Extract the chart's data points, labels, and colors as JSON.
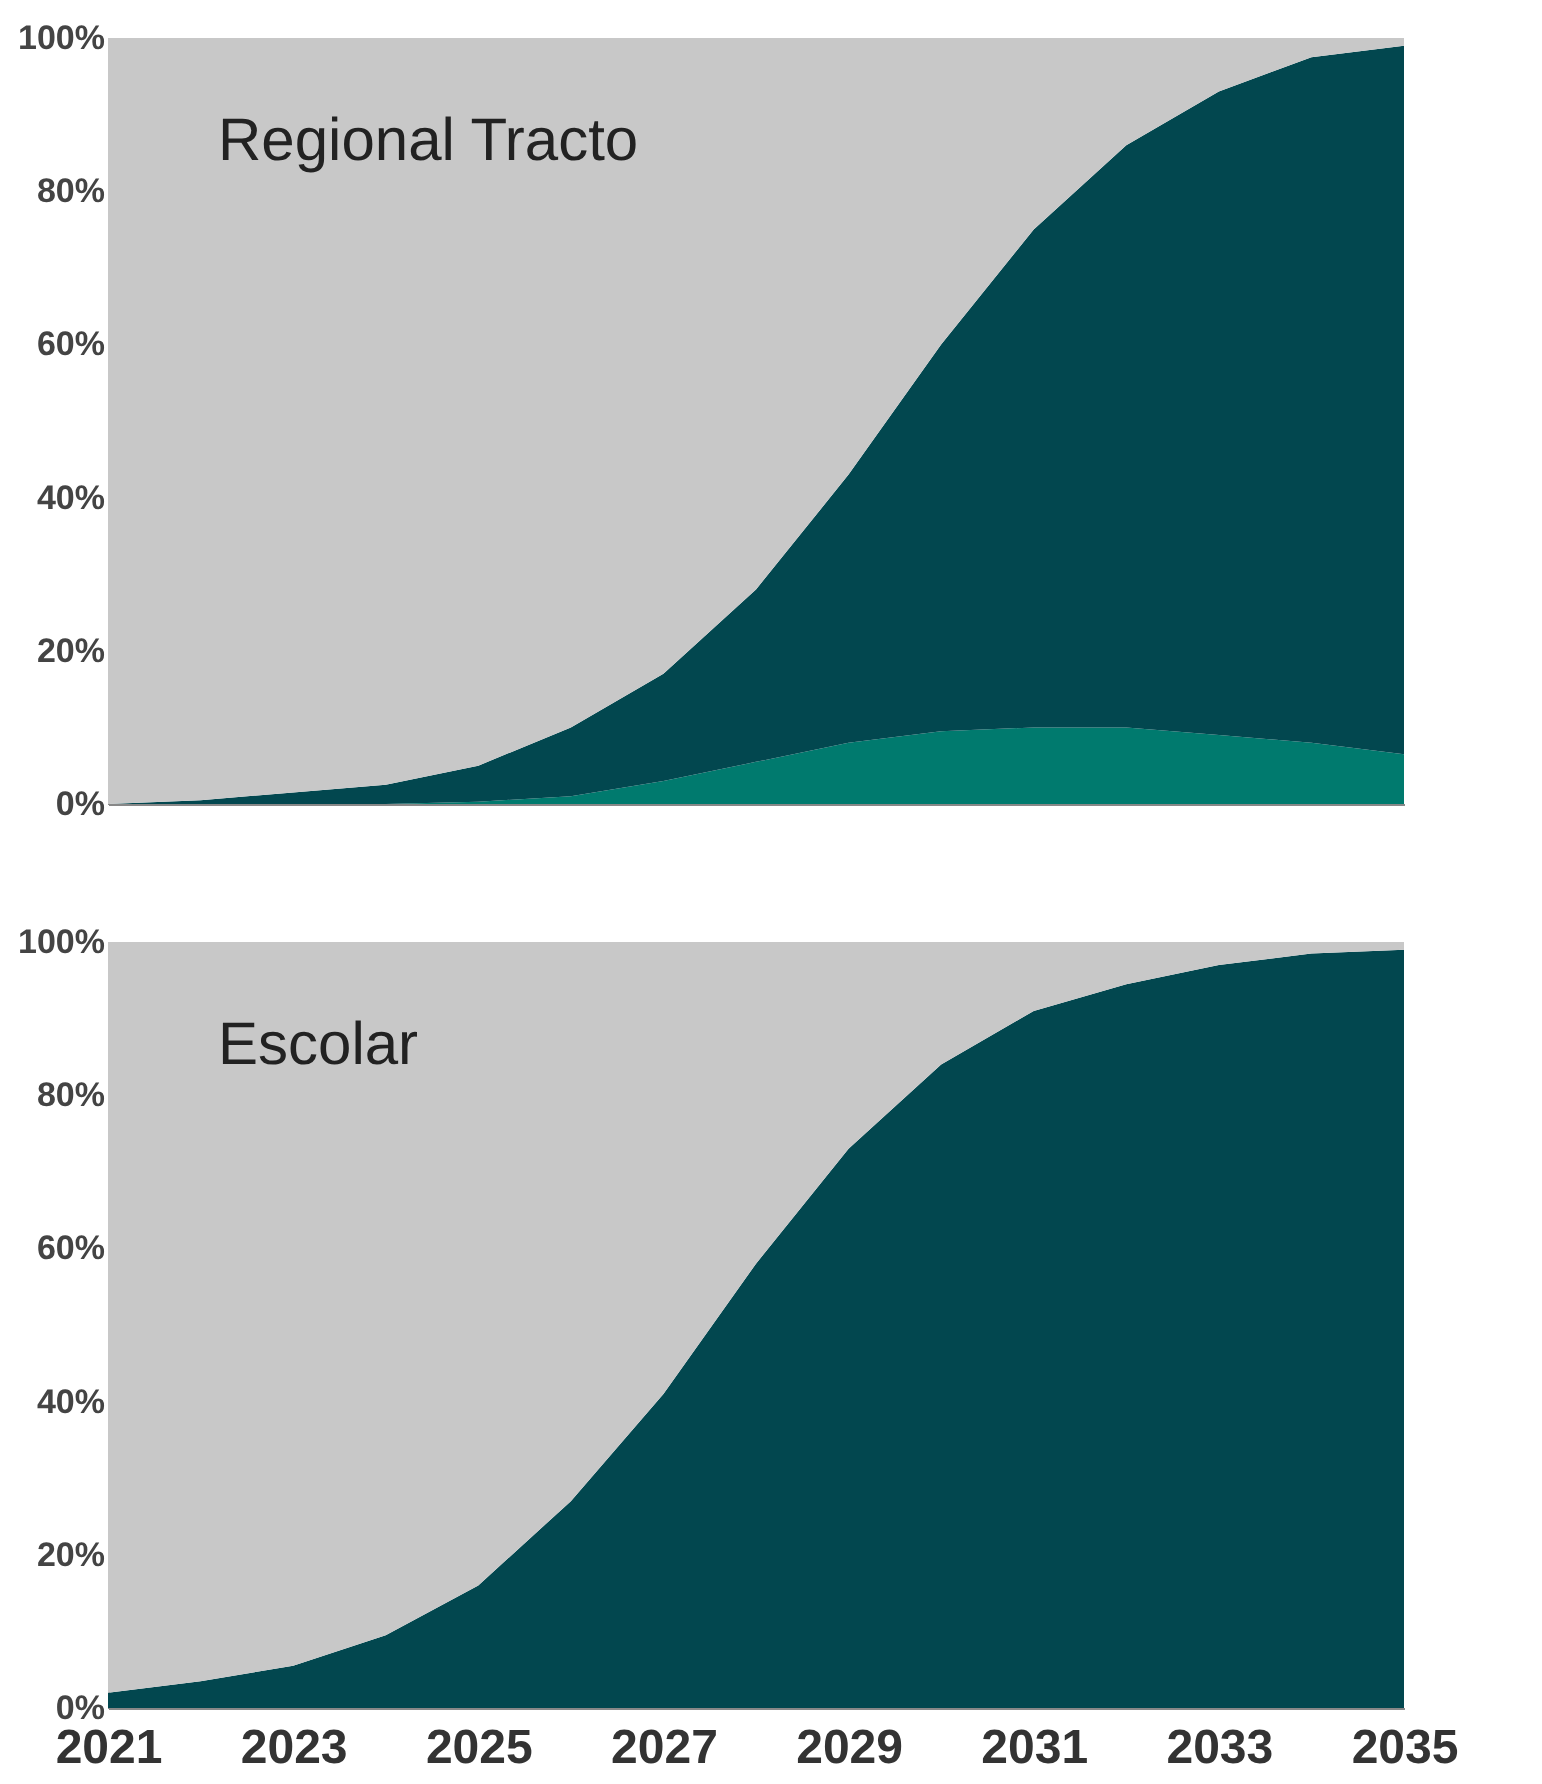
{
  "chart_data": [
    {
      "type": "area",
      "title": "Regional Tracto",
      "stacked": true,
      "tick_labels": "y",
      "x": [
        2021,
        2022,
        2023,
        2024,
        2025,
        2026,
        2027,
        2028,
        2029,
        2030,
        2031,
        2032,
        2033,
        2034,
        2035
      ],
      "series": [
        {
          "color": "#007a6e",
          "values": [
            0,
            0,
            0,
            0,
            0.3,
            1,
            3,
            5.5,
            8,
            9.5,
            10,
            10,
            9,
            8,
            6.5
          ]
        },
        {
          "color": "#02474f",
          "values": [
            0,
            0.5,
            1.5,
            2.5,
            4.7,
            9,
            14,
            22.5,
            35,
            50.5,
            65,
            76,
            84,
            89.5,
            92.5
          ]
        },
        {
          "color": "#c8c8c8",
          "values": [
            100,
            99.5,
            98.5,
            97.5,
            95,
            90,
            83,
            72,
            57,
            40,
            25,
            14,
            7,
            2.5,
            1
          ]
        }
      ],
      "xlim": [
        2021,
        2035
      ],
      "xticks": [
        2021,
        2023,
        2025,
        2027,
        2029,
        2031,
        2033,
        2035
      ],
      "ylim": [
        0,
        100
      ],
      "yticks": [
        {
          "value": 0,
          "label": "0%"
        },
        {
          "value": 20,
          "label": "20%"
        },
        {
          "value": 40,
          "label": "40%"
        },
        {
          "value": 60,
          "label": "60%"
        },
        {
          "value": 80,
          "label": "80%"
        },
        {
          "value": 100,
          "label": "100%"
        }
      ]
    },
    {
      "type": "area",
      "title": "Escolar",
      "stacked": true,
      "x": [
        2021,
        2022,
        2023,
        2024,
        2025,
        2026,
        2027,
        2028,
        2029,
        2030,
        2031,
        2032,
        2033,
        2034,
        2035
      ],
      "series": [
        {
          "color": "#02474f",
          "values": [
            2,
            3.5,
            5.5,
            9.5,
            16,
            27,
            41,
            58,
            73,
            84,
            91,
            94.5,
            97,
            98.5,
            99
          ]
        },
        {
          "color": "#c8c8c8",
          "values": [
            98,
            96.5,
            94.5,
            90.5,
            84,
            73,
            59,
            42,
            27,
            16,
            9,
            5.5,
            3,
            1.5,
            1
          ]
        }
      ],
      "xlim": [
        2021,
        2035
      ],
      "xticks": [
        2021,
        2023,
        2025,
        2027,
        2029,
        2031,
        2033,
        2035
      ],
      "ylim": [
        0,
        100
      ],
      "yticks": [
        {
          "value": 0,
          "label": "0%"
        },
        {
          "value": 20,
          "label": "20%"
        },
        {
          "value": 40,
          "label": "40%"
        },
        {
          "value": 60,
          "label": "60%"
        },
        {
          "value": 80,
          "label": "80%"
        },
        {
          "value": 100,
          "label": "100%"
        }
      ]
    }
  ]
}
